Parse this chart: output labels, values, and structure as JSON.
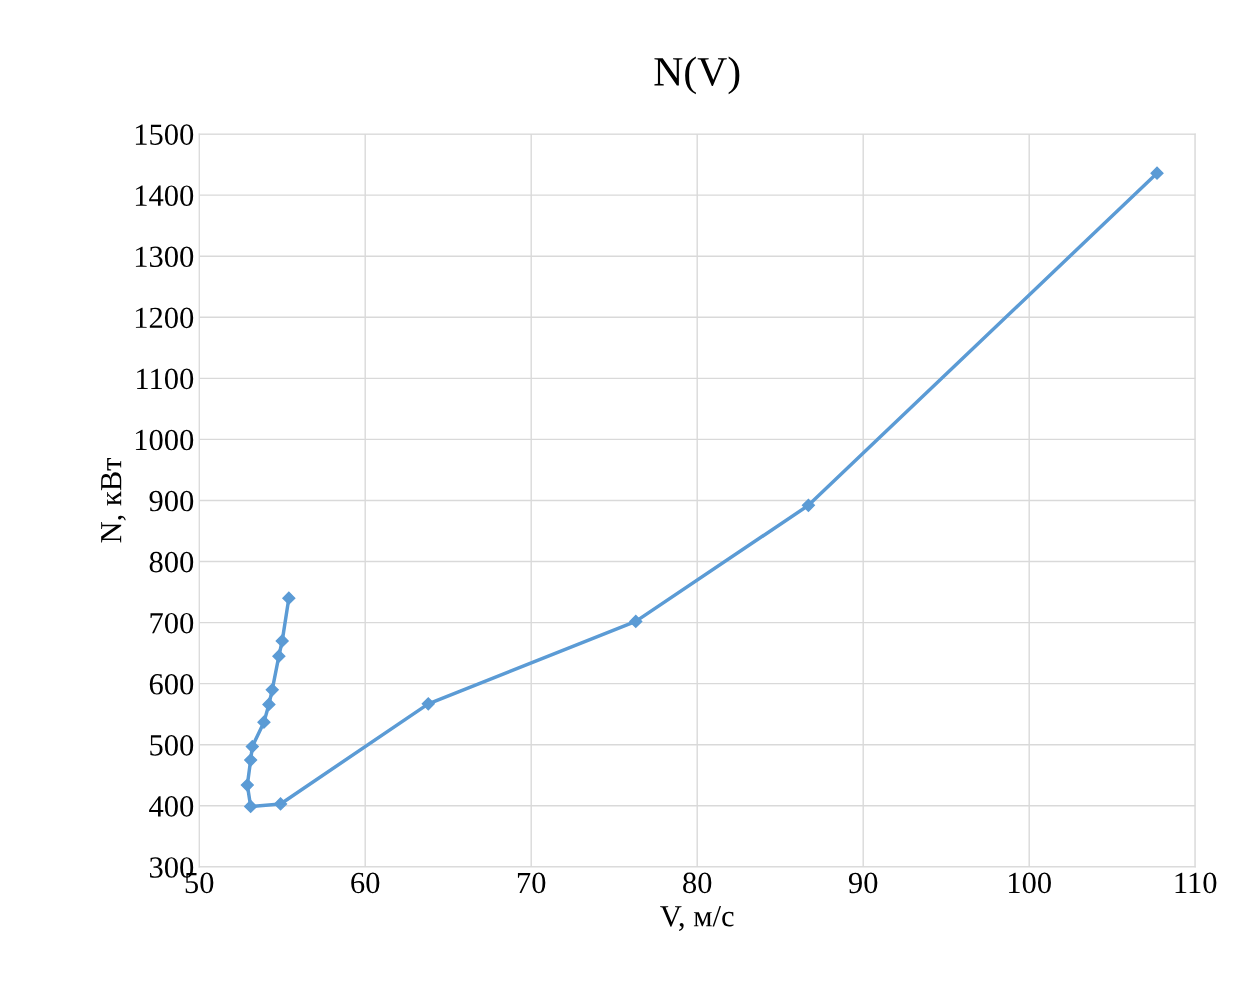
{
  "chart_data": {
    "type": "line",
    "title": "N(V)",
    "xlabel": "V, м/с",
    "ylabel": "N, кВт",
    "series": [
      {
        "color": "#5b9bd5",
        "x": [
          55.4,
          55.0,
          54.8,
          54.4,
          54.2,
          53.9,
          53.2,
          53.1,
          52.9,
          53.1,
          54.9,
          63.8,
          76.3,
          86.7,
          107.7
        ],
        "values": [
          740,
          670,
          645,
          590,
          566,
          537,
          497,
          475,
          434,
          399,
          403,
          567,
          702,
          892,
          1436
        ]
      }
    ],
    "xlim": [
      50,
      110
    ],
    "xticks": [
      50,
      60,
      70,
      80,
      90,
      100,
      110
    ],
    "ylim": [
      300,
      1500
    ],
    "yticks": [
      300,
      400,
      500,
      600,
      700,
      800,
      900,
      1000,
      1100,
      1200,
      1300,
      1400,
      1500
    ],
    "grid": true,
    "marker": "diamond",
    "line_style": "solid"
  }
}
